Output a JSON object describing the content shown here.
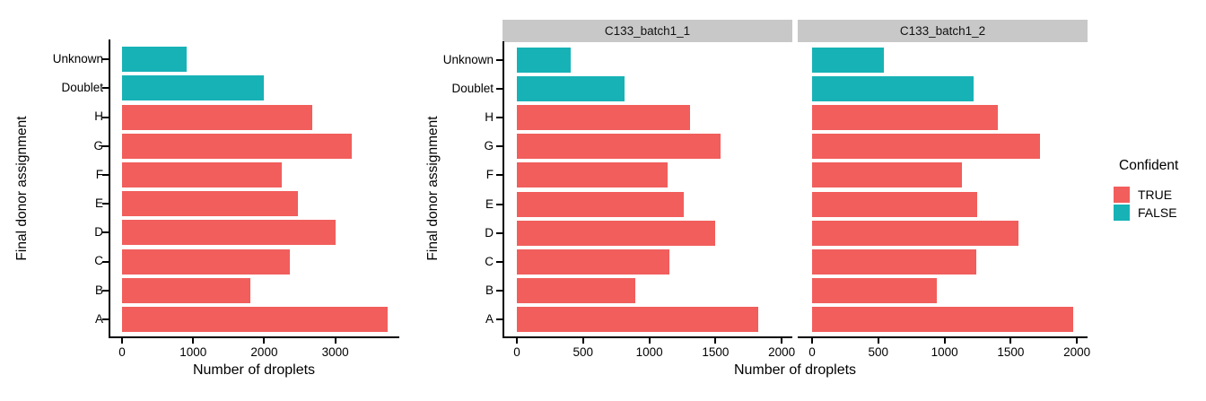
{
  "colors": {
    "TRUE": "#F15E5C",
    "FALSE": "#17B2B6",
    "strip_bg": "#C8C8C8",
    "axis": "#000000",
    "background": "#FFFFFF"
  },
  "legend": {
    "title": "Confident",
    "items": [
      {
        "label": "TRUE",
        "key": "TRUE"
      },
      {
        "label": "FALSE",
        "key": "FALSE"
      }
    ],
    "position": "right"
  },
  "chart_data": [
    {
      "type": "bar",
      "orientation": "horizontal",
      "title": "",
      "xlabel": "Number of droplets",
      "ylabel": "Final donor assignment",
      "grid": false,
      "categories": [
        "Unknown",
        "Doublet",
        "H",
        "G",
        "F",
        "E",
        "D",
        "C",
        "B",
        "A"
      ],
      "confident": [
        false,
        false,
        true,
        true,
        true,
        true,
        true,
        true,
        true,
        true
      ],
      "values": [
        910,
        2000,
        2675,
        3225,
        2245,
        2475,
        3010,
        2360,
        1800,
        3740
      ],
      "xlim": [
        0,
        3900
      ],
      "ticks": [
        0,
        1000,
        2000,
        3000
      ]
    },
    {
      "type": "bar",
      "orientation": "horizontal",
      "title": "",
      "xlabel": "Number of droplets",
      "ylabel": "Final donor assignment",
      "grid": false,
      "categories": [
        "Unknown",
        "Doublet",
        "H",
        "G",
        "F",
        "E",
        "D",
        "C",
        "B",
        "A"
      ],
      "confident": [
        false,
        false,
        true,
        true,
        true,
        true,
        true,
        true,
        true,
        true
      ],
      "xlim": [
        0,
        2080
      ],
      "ticks": [
        0,
        500,
        1000,
        1500,
        2000
      ],
      "facets": [
        {
          "label": "C133_batch1_1",
          "values": [
            405,
            815,
            1310,
            1540,
            1140,
            1260,
            1495,
            1150,
            895,
            1820
          ]
        },
        {
          "label": "C133_batch1_2",
          "values": [
            540,
            1220,
            1400,
            1720,
            1130,
            1250,
            1560,
            1240,
            940,
            1970
          ]
        }
      ]
    }
  ]
}
